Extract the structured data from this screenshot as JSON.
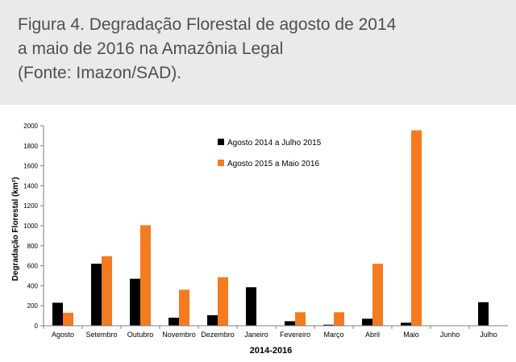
{
  "caption": {
    "lines": [
      "Figura 4. Degradação Florestal de agosto de 2014",
      "a maio de 2016 na Amazônia Legal",
      "(Fonte: Imazon/SAD)."
    ]
  },
  "colors": {
    "series1": "#000000",
    "series2": "#f47b20",
    "axis": "#7f7f7f",
    "caption_bg": "#e9eaea"
  },
  "chart_data": {
    "type": "bar",
    "title": "",
    "xlabel": "2014-2016",
    "ylabel": "Degradação Florestal (km²)",
    "ylim": [
      0,
      2000
    ],
    "yticks": [
      0,
      200,
      400,
      600,
      800,
      1000,
      1200,
      1400,
      1600,
      1800,
      2000
    ],
    "grid": false,
    "legend_position": "top-center",
    "categories": [
      "Agosto",
      "Setembro",
      "Outubro",
      "Novembro",
      "Dezembro",
      "Janeiro",
      "Fevereiro",
      "Março",
      "Abril",
      "Maio",
      "Junho",
      "Julho"
    ],
    "series": [
      {
        "name": "Agosto 2014 a Julho 2015",
        "color": "#000000",
        "values": [
          230,
          620,
          470,
          80,
          105,
          385,
          45,
          10,
          70,
          30,
          0,
          235
        ]
      },
      {
        "name": "Agosto 2015 a Maio 2016",
        "color": "#f47b20",
        "values": [
          130,
          695,
          1005,
          360,
          485,
          0,
          135,
          135,
          620,
          1955,
          null,
          null
        ]
      }
    ]
  }
}
